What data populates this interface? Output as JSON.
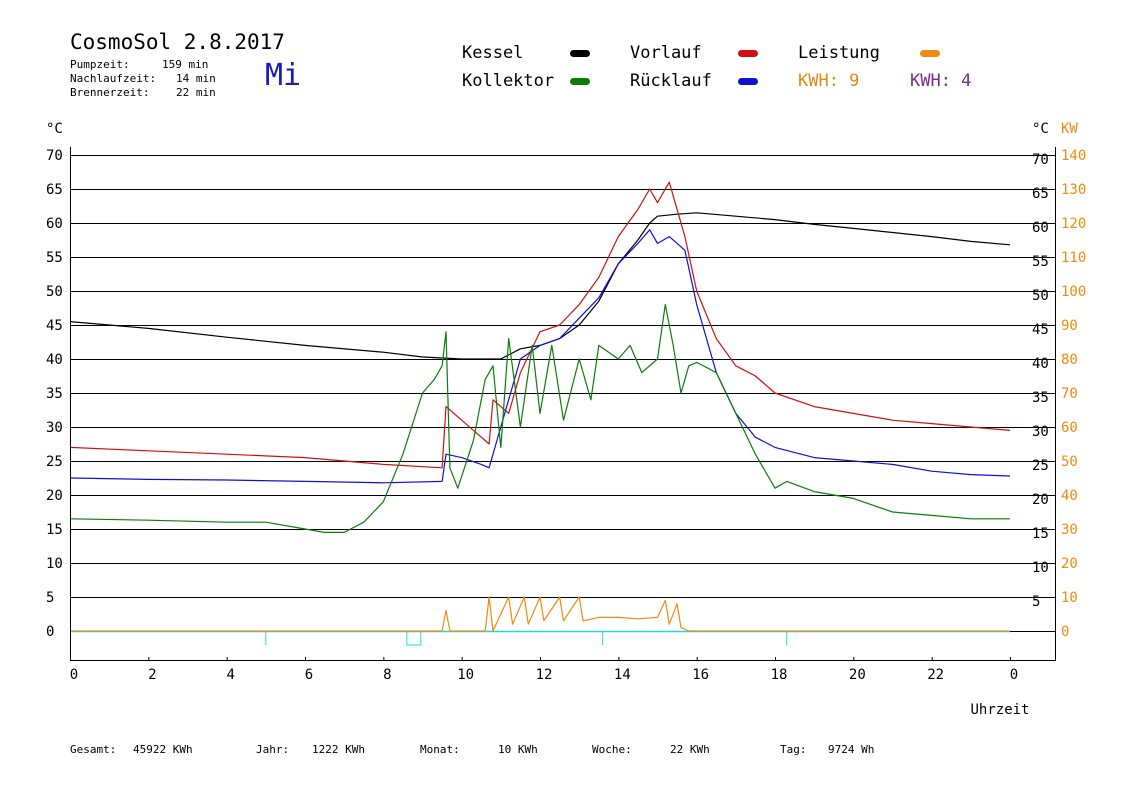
{
  "header": {
    "title": "CosmoSol 2.8.2017",
    "day": "Mi",
    "pump_label": "Pumpzeit:",
    "pump_value": "159 min",
    "after_label": "Nachlaufzeit:",
    "after_value": "14 min",
    "burner_label": "Brennerzeit:",
    "burner_value": "22 min"
  },
  "legend": {
    "kessel": "Kessel",
    "kollektor": "Kollektor",
    "vorlauf": "Vorlauf",
    "ruecklauf": "Rücklauf",
    "leistung": "Leistung",
    "kwh1": "KWH: 9",
    "kwh2": "KWH: 4"
  },
  "colors": {
    "kessel": "#000000",
    "kollektor": "#0a7d0a",
    "vorlauf": "#d01010",
    "ruecklauf": "#1010d0",
    "leistung": "#f08a10",
    "kwh1": "#e08a10",
    "kwh2": "#7a2a8a",
    "baseline": "#20d8e0",
    "day": "#1a1ab8"
  },
  "footer": {
    "gesamt_label": "Gesamt:",
    "gesamt_value": "45922 KWh",
    "jahr_label": "Jahr:",
    "jahr_value": "1222 KWh",
    "monat_label": "Monat:",
    "monat_value": "10 KWh",
    "woche_label": "Woche:",
    "woche_value": "22 KWh",
    "tag_label": "Tag:",
    "tag_value": "9724 Wh"
  },
  "chart_data": {
    "type": "line",
    "xlabel": "Uhrzeit",
    "ylabel_left": "°C",
    "ylabel_right": "°C",
    "ylabel_right2": "KW",
    "xlim": [
      0,
      24
    ],
    "ylim": [
      -4,
      75
    ],
    "x_ticks": [
      "0",
      "2",
      "4",
      "6",
      "8",
      "10",
      "12",
      "14",
      "16",
      "18",
      "20",
      "22",
      "0"
    ],
    "y_ticks_left": [
      "70",
      "65",
      "60",
      "55",
      "50",
      "45",
      "40",
      "35",
      "30",
      "25",
      "20",
      "15",
      "10",
      "5",
      "0"
    ],
    "y_ticks_right": [
      "70",
      "65",
      "60",
      "55",
      "50",
      "45",
      "40",
      "35",
      "30",
      "25",
      "20",
      "15",
      "10",
      "5"
    ],
    "y_ticks_kw": [
      "140",
      "130",
      "120",
      "110",
      "100",
      "90",
      "80",
      "70",
      "60",
      "50",
      "40",
      "30",
      "20",
      "10",
      "0"
    ],
    "grid": true,
    "series": [
      {
        "name": "Kessel",
        "color": "#000000",
        "points": [
          [
            0,
            45.5
          ],
          [
            2,
            44.5
          ],
          [
            4,
            43.2
          ],
          [
            6,
            42
          ],
          [
            8,
            41
          ],
          [
            9,
            40.3
          ],
          [
            10,
            40
          ],
          [
            11,
            40
          ],
          [
            11.5,
            41.5
          ],
          [
            12,
            42
          ],
          [
            12.5,
            43
          ],
          [
            13,
            45
          ],
          [
            13.5,
            48.5
          ],
          [
            14,
            54
          ],
          [
            14.5,
            57.5
          ],
          [
            14.8,
            60
          ],
          [
            15,
            61
          ],
          [
            15.5,
            61.3
          ],
          [
            16,
            61.5
          ],
          [
            17,
            61
          ],
          [
            18,
            60.5
          ],
          [
            19,
            59.8
          ],
          [
            20,
            59.2
          ],
          [
            21,
            58.6
          ],
          [
            22,
            58
          ],
          [
            23,
            57.3
          ],
          [
            24,
            56.8
          ]
        ]
      },
      {
        "name": "Vorlauf",
        "color": "#d01010",
        "points": [
          [
            0,
            27
          ],
          [
            2,
            26.5
          ],
          [
            4,
            26
          ],
          [
            6,
            25.5
          ],
          [
            8,
            24.5
          ],
          [
            9.5,
            24
          ],
          [
            9.6,
            33
          ],
          [
            10,
            31
          ],
          [
            10.5,
            28.5
          ],
          [
            10.7,
            27.5
          ],
          [
            10.8,
            34
          ],
          [
            11.2,
            32
          ],
          [
            11.5,
            38
          ],
          [
            12,
            44
          ],
          [
            12.5,
            45
          ],
          [
            13,
            48
          ],
          [
            13.5,
            52
          ],
          [
            14,
            58
          ],
          [
            14.5,
            62
          ],
          [
            14.8,
            65
          ],
          [
            15,
            63
          ],
          [
            15.3,
            66
          ],
          [
            15.5,
            62
          ],
          [
            15.7,
            58
          ],
          [
            16,
            50
          ],
          [
            16.5,
            43
          ],
          [
            17,
            39
          ],
          [
            17.5,
            37.5
          ],
          [
            18,
            35
          ],
          [
            19,
            33
          ],
          [
            20,
            32
          ],
          [
            21,
            31
          ],
          [
            22,
            30.5
          ],
          [
            23,
            30
          ],
          [
            24,
            29.5
          ]
        ]
      },
      {
        "name": "Rücklauf",
        "color": "#1010d0",
        "points": [
          [
            0,
            22.5
          ],
          [
            2,
            22.3
          ],
          [
            4,
            22.2
          ],
          [
            6,
            22
          ],
          [
            8,
            21.8
          ],
          [
            9.5,
            22
          ],
          [
            9.6,
            26
          ],
          [
            10,
            25.5
          ],
          [
            10.5,
            24.5
          ],
          [
            10.7,
            24
          ],
          [
            11,
            30
          ],
          [
            11.5,
            40
          ],
          [
            12,
            42
          ],
          [
            12.5,
            43
          ],
          [
            13,
            46
          ],
          [
            13.5,
            49
          ],
          [
            14,
            54
          ],
          [
            14.5,
            57
          ],
          [
            14.8,
            59
          ],
          [
            15,
            57
          ],
          [
            15.3,
            58
          ],
          [
            15.5,
            57
          ],
          [
            15.7,
            56
          ],
          [
            16,
            48
          ],
          [
            16.5,
            38
          ],
          [
            17,
            32
          ],
          [
            17.5,
            28.5
          ],
          [
            18,
            27
          ],
          [
            19,
            25.5
          ],
          [
            20,
            25
          ],
          [
            21,
            24.5
          ],
          [
            22,
            23.5
          ],
          [
            23,
            23
          ],
          [
            24,
            22.8
          ]
        ]
      },
      {
        "name": "Kollektor",
        "color": "#0a7d0a",
        "points": [
          [
            0,
            16.5
          ],
          [
            2,
            16.3
          ],
          [
            4,
            16
          ],
          [
            5,
            16
          ],
          [
            6,
            15
          ],
          [
            6.5,
            14.5
          ],
          [
            7,
            14.5
          ],
          [
            7.5,
            16
          ],
          [
            8,
            19
          ],
          [
            8.5,
            26
          ],
          [
            9,
            35
          ],
          [
            9.3,
            37
          ],
          [
            9.5,
            39
          ],
          [
            9.6,
            44
          ],
          [
            9.7,
            24
          ],
          [
            9.9,
            21
          ],
          [
            10.3,
            28
          ],
          [
            10.6,
            37
          ],
          [
            10.8,
            39
          ],
          [
            11,
            27
          ],
          [
            11.2,
            43
          ],
          [
            11.5,
            30
          ],
          [
            11.8,
            42
          ],
          [
            12,
            32
          ],
          [
            12.3,
            42
          ],
          [
            12.6,
            31
          ],
          [
            13,
            40
          ],
          [
            13.3,
            34
          ],
          [
            13.5,
            42
          ],
          [
            14,
            40
          ],
          [
            14.3,
            42
          ],
          [
            14.6,
            38
          ],
          [
            15,
            40
          ],
          [
            15.2,
            48
          ],
          [
            15.4,
            42
          ],
          [
            15.6,
            35
          ],
          [
            15.8,
            39
          ],
          [
            16,
            39.5
          ],
          [
            16.5,
            38
          ],
          [
            17,
            32
          ],
          [
            17.5,
            26
          ],
          [
            18,
            21
          ],
          [
            18.3,
            22
          ],
          [
            19,
            20.5
          ],
          [
            20,
            19.5
          ],
          [
            21,
            17.5
          ],
          [
            22,
            17
          ],
          [
            23,
            16.5
          ],
          [
            24,
            16.5
          ]
        ]
      },
      {
        "name": "Leistung",
        "color": "#f08a10",
        "points": [
          [
            0,
            0
          ],
          [
            9.5,
            0
          ],
          [
            9.6,
            3
          ],
          [
            9.7,
            0
          ],
          [
            10.6,
            0
          ],
          [
            10.7,
            5
          ],
          [
            10.8,
            0
          ],
          [
            11.2,
            5
          ],
          [
            11.3,
            1
          ],
          [
            11.6,
            5
          ],
          [
            11.7,
            1
          ],
          [
            12,
            5
          ],
          [
            12.1,
            1.5
          ],
          [
            12.5,
            5
          ],
          [
            12.6,
            1.5
          ],
          [
            13,
            5
          ],
          [
            13.1,
            1.5
          ],
          [
            13.5,
            2
          ],
          [
            14,
            2
          ],
          [
            14.5,
            1.8
          ],
          [
            15,
            2
          ],
          [
            15.2,
            4.5
          ],
          [
            15.3,
            1
          ],
          [
            15.5,
            4
          ],
          [
            15.6,
            0.5
          ],
          [
            15.8,
            0
          ],
          [
            24,
            0
          ]
        ]
      }
    ]
  }
}
